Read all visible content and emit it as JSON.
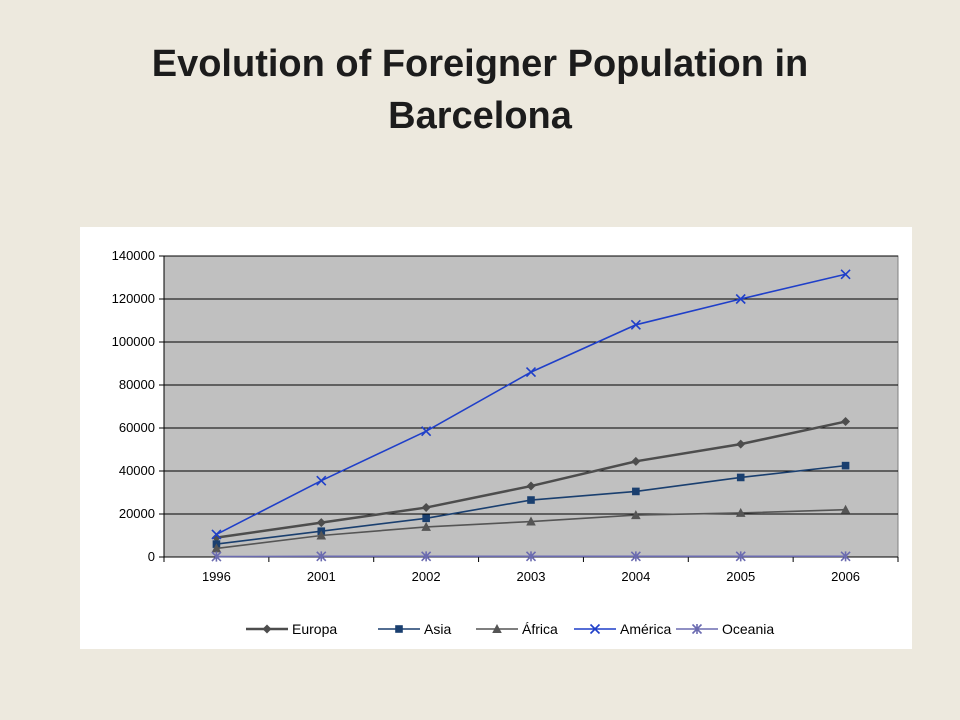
{
  "slide": {
    "title_line1": "Evolution of Foreigner Population in",
    "title_line2": "Barcelona"
  },
  "chart_data": {
    "type": "line",
    "title": "Evolution of Foreigner Population in Barcelona",
    "categories": [
      "1996",
      "2001",
      "2002",
      "2003",
      "2004",
      "2005",
      "2006"
    ],
    "ylim": [
      0,
      140000
    ],
    "yticks": [
      0,
      20000,
      40000,
      60000,
      80000,
      100000,
      120000,
      140000
    ],
    "grid": true,
    "legend_position": "bottom",
    "plot_background": "#c0c0c0",
    "series": [
      {
        "name": "Europa",
        "marker": "diamond",
        "color": "#4d4d4d",
        "values": [
          9000,
          16000,
          23000,
          33000,
          44500,
          52500,
          63000
        ]
      },
      {
        "name": "Asia",
        "marker": "square",
        "color": "#1a3f6f",
        "values": [
          6000,
          12000,
          18000,
          26500,
          30500,
          37000,
          42500
        ]
      },
      {
        "name": "África",
        "marker": "triangle",
        "color": "#555555",
        "values": [
          4000,
          10000,
          14000,
          16500,
          19500,
          20500,
          22000
        ]
      },
      {
        "name": "América",
        "marker": "x",
        "color": "#1f3fc9",
        "values": [
          10500,
          35500,
          58500,
          86000,
          108000,
          120000,
          131500
        ]
      },
      {
        "name": "Oceania",
        "marker": "asterisk",
        "color": "#6b6bb0",
        "values": [
          200,
          300,
          300,
          300,
          300,
          300,
          300
        ]
      }
    ]
  }
}
